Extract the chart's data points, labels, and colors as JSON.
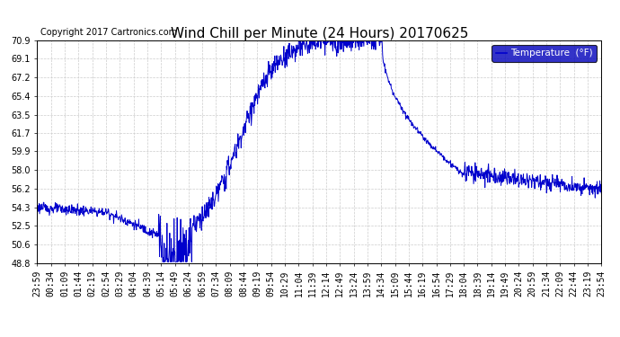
{
  "title": "Wind Chill per Minute (24 Hours) 20170625",
  "copyright": "Copyright 2017 Cartronics.com",
  "legend_label": "Temperature  (°F)",
  "ylim": [
    48.8,
    70.9
  ],
  "yticks": [
    48.8,
    50.6,
    52.5,
    54.3,
    56.2,
    58.0,
    59.9,
    61.7,
    63.5,
    65.4,
    67.2,
    69.1,
    70.9
  ],
  "line_color": "#0000cc",
  "legend_bg": "#0000bb",
  "legend_text_color": "#ffffff",
  "background_color": "#ffffff",
  "grid_color": "#cccccc",
  "title_fontsize": 11,
  "copyright_fontsize": 7,
  "tick_fontsize": 7,
  "xtick_labels": [
    "23:59",
    "00:34",
    "01:09",
    "01:44",
    "02:19",
    "02:54",
    "03:29",
    "04:04",
    "04:39",
    "05:14",
    "05:49",
    "06:24",
    "06:59",
    "07:34",
    "08:09",
    "08:44",
    "09:19",
    "09:54",
    "10:29",
    "11:04",
    "11:39",
    "12:14",
    "12:49",
    "13:24",
    "13:59",
    "14:34",
    "15:09",
    "15:44",
    "16:19",
    "16:54",
    "17:29",
    "18:04",
    "18:39",
    "19:14",
    "19:49",
    "20:24",
    "20:59",
    "21:34",
    "22:09",
    "22:44",
    "23:19",
    "23:54"
  ]
}
